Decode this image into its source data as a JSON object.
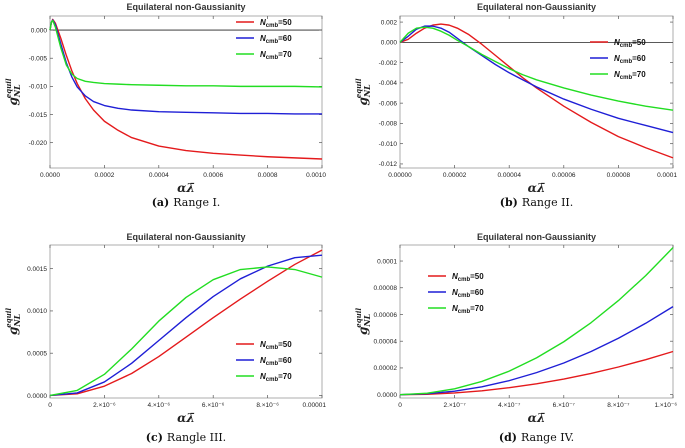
{
  "colors": {
    "red": "#e41a1c",
    "blue": "#1f1fd6",
    "green": "#22dd22",
    "frame": "#999999",
    "zero_line": "#222222"
  },
  "chart_data": [
    {
      "type": "line",
      "title": "Equilateral non-Gaussianity",
      "xlabel": "αλ̄",
      "ylabel": "g",
      "ylabel_sup": "equil",
      "ylabel_sub": "NL",
      "xlim": [
        0,
        0.001
      ],
      "ylim": [
        -0.0245,
        0.0025
      ],
      "xticks": [
        0,
        0.0002,
        0.0004,
        0.0006,
        0.0008,
        0.001
      ],
      "xtick_labels": [
        "0.0000",
        "0.0002",
        "0.0004",
        "0.0006",
        "0.0008",
        "0.0010"
      ],
      "yticks": [
        0,
        -0.005,
        -0.01,
        -0.015,
        -0.02
      ],
      "ytick_labels": [
        "0.000",
        "-0.005",
        "-0.010",
        "-0.015",
        "-0.020"
      ],
      "zero_line": true,
      "legend": "top-right",
      "caption_label": "(a)",
      "caption_text": "Range I.",
      "series": [
        {
          "name": "N",
          "name_sub": "cmb",
          "name_suffix": "=50",
          "color": "red",
          "x": [
            0,
            5e-06,
            1e-05,
            2e-05,
            4e-05,
            6e-05,
            8e-05,
            0.0001,
            0.00013,
            0.00016,
            0.0002,
            0.00025,
            0.0003,
            0.0004,
            0.0005,
            0.0006,
            0.0007,
            0.0008,
            0.0009,
            0.001
          ],
          "y": [
            0,
            0.0013,
            0.0019,
            0.0012,
            -0.0015,
            -0.0045,
            -0.0072,
            -0.0095,
            -0.0122,
            -0.0142,
            -0.0162,
            -0.0178,
            -0.0191,
            -0.0206,
            -0.0214,
            -0.0219,
            -0.0222,
            -0.0225,
            -0.0227,
            -0.0229
          ]
        },
        {
          "name": "N",
          "name_sub": "cmb",
          "name_suffix": "=60",
          "color": "blue",
          "x": [
            0,
            5e-06,
            1e-05,
            2e-05,
            4e-05,
            6e-05,
            8e-05,
            0.0001,
            0.00013,
            0.00016,
            0.0002,
            0.00025,
            0.0003,
            0.0004,
            0.0005,
            0.0006,
            0.0007,
            0.0008,
            0.0009,
            0.001
          ],
          "y": [
            0,
            0.0014,
            0.0018,
            0.0009,
            -0.0025,
            -0.0058,
            -0.0083,
            -0.0101,
            -0.0117,
            -0.0127,
            -0.0134,
            -0.0139,
            -0.0142,
            -0.0145,
            -0.0146,
            -0.0147,
            -0.0148,
            -0.0148,
            -0.0149,
            -0.0149
          ]
        },
        {
          "name": "N",
          "name_sub": "cmb",
          "name_suffix": "=70",
          "color": "green",
          "x": [
            0,
            5e-06,
            1e-05,
            2e-05,
            4e-05,
            6e-05,
            8e-05,
            0.0001,
            0.00013,
            0.00016,
            0.0002,
            0.00025,
            0.0003,
            0.0004,
            0.0005,
            0.0006,
            0.0007,
            0.0008,
            0.0009,
            0.001
          ],
          "y": [
            0,
            0.0014,
            0.0017,
            0.0005,
            -0.0032,
            -0.0062,
            -0.0078,
            -0.0086,
            -0.0091,
            -0.0093,
            -0.0095,
            -0.0096,
            -0.0097,
            -0.0098,
            -0.0099,
            -0.0099,
            -0.01,
            -0.01,
            -0.01,
            -0.0101
          ]
        }
      ]
    },
    {
      "type": "line",
      "title": "Equilateral non-Gaussianity",
      "xlabel": "αλ̄",
      "ylabel": "g",
      "ylabel_sup": "equil",
      "ylabel_sub": "NL",
      "xlim": [
        0,
        0.0001
      ],
      "ylim": [
        -0.0124,
        0.0026
      ],
      "xticks": [
        0,
        2e-05,
        4e-05,
        6e-05,
        8e-05,
        0.0001
      ],
      "xtick_labels": [
        "0.00000",
        "0.00002",
        "0.00004",
        "0.00006",
        "0.00008",
        "0.0001"
      ],
      "yticks": [
        0.002,
        0,
        -0.002,
        -0.004,
        -0.006,
        -0.008,
        -0.01,
        -0.012
      ],
      "ytick_labels": [
        "0.002",
        "0.000",
        "-0.002",
        "-0.004",
        "-0.006",
        "-0.008",
        "-0.010",
        "-0.012"
      ],
      "zero_line": true,
      "legend": "top-right",
      "caption_label": "(b)",
      "caption_text": "Range II.",
      "series": [
        {
          "name": "N",
          "name_sub": "cmb",
          "name_suffix": "=50",
          "color": "red",
          "x": [
            0,
            3e-06,
            6e-06,
            9e-06,
            1.2e-05,
            1.5e-05,
            1.8e-05,
            2.1e-05,
            2.5e-05,
            3e-05,
            3.5e-05,
            4e-05,
            4.5e-05,
            5e-05,
            6e-05,
            7e-05,
            8e-05,
            9e-05,
            0.0001
          ],
          "y": [
            0,
            0.0003,
            0.0009,
            0.0014,
            0.0017,
            0.0018,
            0.0017,
            0.0014,
            0.0008,
            -0.0002,
            -0.0013,
            -0.0024,
            -0.0035,
            -0.0045,
            -0.0063,
            -0.0079,
            -0.0093,
            -0.0104,
            -0.0114
          ]
        },
        {
          "name": "N",
          "name_sub": "cmb",
          "name_suffix": "=60",
          "color": "blue",
          "x": [
            0,
            3e-06,
            6e-06,
            9e-06,
            1.2e-05,
            1.5e-05,
            1.8e-05,
            2.1e-05,
            2.5e-05,
            3e-05,
            3.5e-05,
            4e-05,
            4.5e-05,
            5e-05,
            6e-05,
            7e-05,
            8e-05,
            9e-05,
            0.0001
          ],
          "y": [
            0,
            0.0006,
            0.0013,
            0.0016,
            0.0016,
            0.0014,
            0.001,
            0.0004,
            -0.0004,
            -0.0013,
            -0.0022,
            -0.003,
            -0.0037,
            -0.0044,
            -0.0056,
            -0.0066,
            -0.0075,
            -0.0082,
            -0.0089
          ]
        },
        {
          "name": "N",
          "name_sub": "cmb",
          "name_suffix": "=70",
          "color": "green",
          "x": [
            0,
            3e-06,
            6e-06,
            9e-06,
            1.2e-05,
            1.5e-05,
            1.8e-05,
            2.1e-05,
            2.5e-05,
            3e-05,
            3.5e-05,
            4e-05,
            4.5e-05,
            5e-05,
            6e-05,
            7e-05,
            8e-05,
            9e-05,
            0.0001
          ],
          "y": [
            0,
            0.0009,
            0.0014,
            0.0015,
            0.0014,
            0.0011,
            0.0007,
            0.0002,
            -0.0004,
            -0.0012,
            -0.0019,
            -0.0026,
            -0.0032,
            -0.0037,
            -0.0045,
            -0.0052,
            -0.0058,
            -0.0063,
            -0.0067
          ]
        }
      ]
    },
    {
      "type": "line",
      "title": "Equilateral non-Gaussianity",
      "xlabel": "αλ̄",
      "ylabel": "g",
      "ylabel_sup": "equil",
      "ylabel_sub": "NL",
      "xlim": [
        0,
        1e-05
      ],
      "ylim": [
        -3e-05,
        0.00178
      ],
      "xticks": [
        0,
        2e-06,
        4e-06,
        6e-06,
        8e-06,
        1e-05
      ],
      "xtick_labels": [
        "0",
        "2.×10⁻⁶",
        "4.×10⁻⁶",
        "6.×10⁻⁶",
        "8.×10⁻⁶",
        "0.00001"
      ],
      "yticks": [
        0,
        0.0005,
        0.001,
        0.0015
      ],
      "ytick_labels": [
        "0.0000",
        "0.0005",
        "0.0010",
        "0.0015"
      ],
      "zero_line": false,
      "legend": "bottom-right",
      "caption_label": "(c)",
      "caption_text": "Rangle III.",
      "series": [
        {
          "name": "N",
          "name_sub": "cmb",
          "name_suffix": "=50",
          "color": "red",
          "x": [
            0,
            1e-06,
            2e-06,
            3e-06,
            4e-06,
            5e-06,
            6e-06,
            7e-06,
            8e-06,
            9e-06,
            1e-05
          ],
          "y": [
            0,
            2e-05,
            0.00011,
            0.00026,
            0.00046,
            0.00069,
            0.00092,
            0.00114,
            0.00135,
            0.00155,
            0.00172
          ]
        },
        {
          "name": "N",
          "name_sub": "cmb",
          "name_suffix": "=60",
          "color": "blue",
          "x": [
            0,
            1e-06,
            2e-06,
            3e-06,
            4e-06,
            5e-06,
            6e-06,
            7e-06,
            8e-06,
            9e-06,
            1e-05
          ],
          "y": [
            0,
            3e-05,
            0.00016,
            0.00038,
            0.00065,
            0.00092,
            0.00117,
            0.00138,
            0.00153,
            0.00163,
            0.00166
          ]
        },
        {
          "name": "N",
          "name_sub": "cmb",
          "name_suffix": "=70",
          "color": "green",
          "x": [
            0,
            1e-06,
            2e-06,
            3e-06,
            4e-06,
            5e-06,
            6e-06,
            7e-06,
            8e-06,
            9e-06,
            1e-05
          ],
          "y": [
            0,
            6e-05,
            0.00025,
            0.00055,
            0.00088,
            0.00116,
            0.00137,
            0.00149,
            0.00152,
            0.00149,
            0.0014
          ]
        }
      ]
    },
    {
      "type": "line",
      "title": "Equilateral non-Gaussianity",
      "xlabel": "αλ̄",
      "ylabel": "g",
      "ylabel_sup": "equil",
      "ylabel_sub": "NL",
      "xlim": [
        0,
        1e-06
      ],
      "ylim": [
        -2.5e-06,
        0.000112
      ],
      "xticks": [
        0,
        2e-07,
        4e-07,
        6e-07,
        8e-07,
        1e-06
      ],
      "xtick_labels": [
        "0",
        "2.×10⁻⁷",
        "4.×10⁻⁷",
        "6.×10⁻⁷",
        "8.×10⁻⁷",
        "1.×10⁻⁶"
      ],
      "yticks": [
        0,
        2e-05,
        4e-05,
        6e-05,
        8e-05,
        0.0001
      ],
      "ytick_labels": [
        "0.0000",
        "0.00002",
        "0.00004",
        "0.00006",
        "0.00008",
        "0.0001"
      ],
      "zero_line": false,
      "legend": "top-left",
      "caption_label": "(d)",
      "caption_text": "Range IV.",
      "series": [
        {
          "name": "N",
          "name_sub": "cmb",
          "name_suffix": "=50",
          "color": "red",
          "x": [
            0,
            1e-07,
            2e-07,
            3e-07,
            4e-07,
            5e-07,
            6e-07,
            7e-07,
            8e-07,
            9e-07,
            1e-06
          ],
          "y": [
            0,
            3e-07,
            1.3e-06,
            2.9e-06,
            5.2e-06,
            8.1e-06,
            1.17e-05,
            1.59e-05,
            2.07e-05,
            2.62e-05,
            3.23e-05
          ]
        },
        {
          "name": "N",
          "name_sub": "cmb",
          "name_suffix": "=60",
          "color": "blue",
          "x": [
            0,
            1e-07,
            2e-07,
            3e-07,
            4e-07,
            5e-07,
            6e-07,
            7e-07,
            8e-07,
            9e-07,
            1e-06
          ],
          "y": [
            0,
            7e-07,
            2.6e-06,
            5.9e-06,
            1.05e-05,
            1.65e-05,
            2.37e-05,
            3.23e-05,
            4.22e-05,
            5.34e-05,
            6.59e-05
          ]
        },
        {
          "name": "N",
          "name_sub": "cmb",
          "name_suffix": "=70",
          "color": "green",
          "x": [
            0,
            1e-07,
            2e-07,
            3e-07,
            4e-07,
            5e-07,
            6e-07,
            7e-07,
            8e-07,
            9e-07,
            1e-06
          ],
          "y": [
            0,
            1.1e-06,
            4.4e-06,
            9.9e-06,
            1.76e-05,
            2.75e-05,
            3.96e-05,
            5.39e-05,
            7.04e-05,
            8.91e-05,
            0.00011
          ]
        }
      ]
    }
  ]
}
